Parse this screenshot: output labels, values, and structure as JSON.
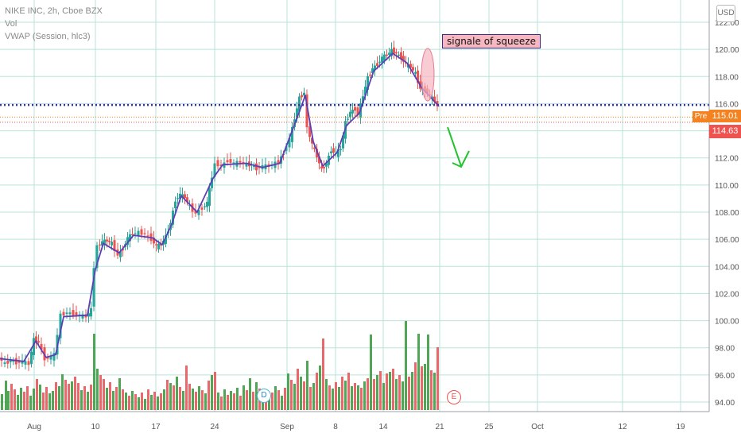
{
  "legend": {
    "title": "NIKE INC, 2h, Cboe BZX",
    "vol": "Vol",
    "vwap": "VWAP (Session, hlc3)"
  },
  "currency_button": "USD",
  "annotation": "signale of squeeze",
  "price_tags": {
    "pre_label": "Pre",
    "pre_price": "115.01",
    "last_price": "114.63"
  },
  "markers": {
    "dividend": "D",
    "earnings": "E"
  },
  "colors": {
    "up": "#26a69a",
    "down": "#ef5350",
    "vol_up": "#3d9b45",
    "vol_down": "#e8585b",
    "vwap": "#5b3fb5",
    "grid": "#b8e3d8",
    "dotted_line": "#3a2fa8",
    "arrow": "#22c32e",
    "annotation_fill": "#f6b7c0",
    "pre": "#f58220"
  },
  "chart_data": {
    "type": "candlestick",
    "title": "NIKE INC, 2h, Cboe BZX",
    "y_ticks": [
      "94.00",
      "96.00",
      "98.00",
      "100.00",
      "102.00",
      "104.00",
      "106.00",
      "108.00",
      "110.00",
      "112.00",
      "114.00",
      "116.00",
      "118.00",
      "120.00",
      "122.00"
    ],
    "ylim": [
      93.5,
      122.5
    ],
    "x_ticks": [
      "Aug",
      "10",
      "17",
      "24",
      "Sep",
      "8",
      "14",
      "21",
      "25",
      "Oct",
      "12",
      "19"
    ],
    "horizontal_level": 115.9,
    "pre_market_price": 115.01,
    "last_price": 114.63,
    "price_path": [
      [
        0,
        97.3
      ],
      [
        8,
        96.8
      ],
      [
        15,
        97.1
      ],
      [
        22,
        96.9
      ],
      [
        30,
        97.0
      ],
      [
        38,
        96.8
      ],
      [
        44,
        98.6
      ],
      [
        50,
        98.4
      ],
      [
        58,
        97.2
      ],
      [
        66,
        97.3
      ],
      [
        70,
        97.5
      ],
      [
        78,
        100.4
      ],
      [
        86,
        100.6
      ],
      [
        94,
        100.5
      ],
      [
        102,
        100.4
      ],
      [
        110,
        100.3
      ],
      [
        116,
        100.8
      ],
      [
        120,
        104.0
      ],
      [
        124,
        105.5
      ],
      [
        130,
        105.8
      ],
      [
        136,
        105.9
      ],
      [
        142,
        105.7
      ],
      [
        150,
        104.8
      ],
      [
        156,
        105.3
      ],
      [
        162,
        106.1
      ],
      [
        168,
        106.4
      ],
      [
        176,
        106.5
      ],
      [
        184,
        106.4
      ],
      [
        192,
        106.0
      ],
      [
        198,
        105.5
      ],
      [
        204,
        105.6
      ],
      [
        210,
        106.2
      ],
      [
        216,
        107.2
      ],
      [
        222,
        108.9
      ],
      [
        228,
        109.3
      ],
      [
        234,
        109.1
      ],
      [
        240,
        108.4
      ],
      [
        248,
        107.9
      ],
      [
        256,
        108.3
      ],
      [
        262,
        108.7
      ],
      [
        268,
        110.6
      ],
      [
        272,
        111.6
      ],
      [
        280,
        111.4
      ],
      [
        288,
        111.8
      ],
      [
        296,
        111.6
      ],
      [
        304,
        111.7
      ],
      [
        312,
        111.5
      ],
      [
        318,
        111.5
      ],
      [
        324,
        111.2
      ],
      [
        332,
        111.4
      ],
      [
        340,
        111.4
      ],
      [
        348,
        111.6
      ],
      [
        352,
        111.7
      ],
      [
        358,
        112.4
      ],
      [
        366,
        113.4
      ],
      [
        372,
        114.9
      ],
      [
        378,
        116.4
      ],
      [
        384,
        116.8
      ],
      [
        388,
        114.2
      ],
      [
        394,
        113.0
      ],
      [
        400,
        112.1
      ],
      [
        406,
        111.1
      ],
      [
        412,
        111.6
      ],
      [
        418,
        112.6
      ],
      [
        424,
        112.3
      ],
      [
        430,
        112.7
      ],
      [
        436,
        114.6
      ],
      [
        442,
        115.4
      ],
      [
        448,
        115.6
      ],
      [
        452,
        115.2
      ],
      [
        458,
        116.6
      ],
      [
        464,
        117.9
      ],
      [
        470,
        118.6
      ],
      [
        476,
        118.9
      ],
      [
        482,
        119.4
      ],
      [
        488,
        119.6
      ],
      [
        494,
        119.9
      ],
      [
        500,
        119.7
      ],
      [
        506,
        119.4
      ],
      [
        512,
        118.9
      ],
      [
        518,
        118.7
      ],
      [
        524,
        118.2
      ],
      [
        530,
        117.1
      ],
      [
        536,
        117.0
      ],
      [
        542,
        116.6
      ],
      [
        548,
        116.2
      ],
      [
        552,
        115.8
      ]
    ],
    "vwap_path": [
      [
        0,
        97.2
      ],
      [
        30,
        97.0
      ],
      [
        45,
        98.5
      ],
      [
        58,
        97.3
      ],
      [
        70,
        97.5
      ],
      [
        80,
        100.3
      ],
      [
        110,
        100.4
      ],
      [
        120,
        103.8
      ],
      [
        130,
        105.7
      ],
      [
        150,
        105.0
      ],
      [
        168,
        106.3
      ],
      [
        192,
        106.1
      ],
      [
        204,
        105.6
      ],
      [
        216,
        107.1
      ],
      [
        228,
        109.2
      ],
      [
        248,
        108.0
      ],
      [
        268,
        110.5
      ],
      [
        280,
        111.5
      ],
      [
        310,
        111.6
      ],
      [
        330,
        111.3
      ],
      [
        352,
        111.6
      ],
      [
        372,
        114.7
      ],
      [
        384,
        116.6
      ],
      [
        394,
        113.2
      ],
      [
        406,
        111.4
      ],
      [
        424,
        112.4
      ],
      [
        436,
        114.4
      ],
      [
        452,
        115.3
      ],
      [
        470,
        118.4
      ],
      [
        494,
        119.7
      ],
      [
        512,
        119.0
      ],
      [
        530,
        117.2
      ],
      [
        552,
        115.8
      ]
    ],
    "volume": [
      {
        "x": 1,
        "h": 20,
        "c": "up"
      },
      {
        "x": 6,
        "h": 37,
        "c": "up"
      },
      {
        "x": 9,
        "h": 24,
        "c": "up"
      },
      {
        "x": 13,
        "h": 33,
        "c": "down"
      },
      {
        "x": 17,
        "h": 26,
        "c": "down"
      },
      {
        "x": 21,
        "h": 19,
        "c": "up"
      },
      {
        "x": 25,
        "h": 28,
        "c": "up"
      },
      {
        "x": 29,
        "h": 23,
        "c": "down"
      },
      {
        "x": 33,
        "h": 30,
        "c": "down"
      },
      {
        "x": 37,
        "h": 18,
        "c": "up"
      },
      {
        "x": 41,
        "h": 27,
        "c": "up"
      },
      {
        "x": 45,
        "h": 39,
        "c": "down"
      },
      {
        "x": 49,
        "h": 32,
        "c": "up"
      },
      {
        "x": 53,
        "h": 22,
        "c": "down"
      },
      {
        "x": 57,
        "h": 29,
        "c": "down"
      },
      {
        "x": 61,
        "h": 21,
        "c": "up"
      },
      {
        "x": 65,
        "h": 24,
        "c": "up"
      },
      {
        "x": 69,
        "h": 35,
        "c": "down"
      },
      {
        "x": 73,
        "h": 30,
        "c": "up"
      },
      {
        "x": 77,
        "h": 45,
        "c": "up"
      },
      {
        "x": 81,
        "h": 38,
        "c": "down"
      },
      {
        "x": 85,
        "h": 33,
        "c": "down"
      },
      {
        "x": 89,
        "h": 36,
        "c": "up"
      },
      {
        "x": 93,
        "h": 42,
        "c": "down"
      },
      {
        "x": 97,
        "h": 34,
        "c": "down"
      },
      {
        "x": 101,
        "h": 25,
        "c": "up"
      },
      {
        "x": 105,
        "h": 30,
        "c": "down"
      },
      {
        "x": 109,
        "h": 23,
        "c": "up"
      },
      {
        "x": 113,
        "h": 32,
        "c": "down"
      },
      {
        "x": 117,
        "h": 96,
        "c": "up"
      },
      {
        "x": 121,
        "h": 52,
        "c": "up"
      },
      {
        "x": 125,
        "h": 44,
        "c": "down"
      },
      {
        "x": 129,
        "h": 39,
        "c": "down"
      },
      {
        "x": 133,
        "h": 28,
        "c": "up"
      },
      {
        "x": 137,
        "h": 35,
        "c": "down"
      },
      {
        "x": 141,
        "h": 24,
        "c": "up"
      },
      {
        "x": 145,
        "h": 29,
        "c": "down"
      },
      {
        "x": 149,
        "h": 40,
        "c": "up"
      },
      {
        "x": 153,
        "h": 26,
        "c": "down"
      },
      {
        "x": 157,
        "h": 22,
        "c": "up"
      },
      {
        "x": 161,
        "h": 18,
        "c": "down"
      },
      {
        "x": 165,
        "h": 24,
        "c": "up"
      },
      {
        "x": 169,
        "h": 20,
        "c": "down"
      },
      {
        "x": 173,
        "h": 16,
        "c": "up"
      },
      {
        "x": 177,
        "h": 22,
        "c": "down"
      },
      {
        "x": 181,
        "h": 14,
        "c": "up"
      },
      {
        "x": 185,
        "h": 26,
        "c": "down"
      },
      {
        "x": 189,
        "h": 19,
        "c": "up"
      },
      {
        "x": 193,
        "h": 23,
        "c": "down"
      },
      {
        "x": 197,
        "h": 17,
        "c": "up"
      },
      {
        "x": 201,
        "h": 21,
        "c": "down"
      },
      {
        "x": 205,
        "h": 26,
        "c": "up"
      },
      {
        "x": 209,
        "h": 38,
        "c": "down"
      },
      {
        "x": 213,
        "h": 34,
        "c": "up"
      },
      {
        "x": 217,
        "h": 31,
        "c": "down"
      },
      {
        "x": 221,
        "h": 42,
        "c": "up"
      },
      {
        "x": 225,
        "h": 29,
        "c": "down"
      },
      {
        "x": 229,
        "h": 24,
        "c": "up"
      },
      {
        "x": 233,
        "h": 56,
        "c": "down"
      },
      {
        "x": 237,
        "h": 33,
        "c": "down"
      },
      {
        "x": 241,
        "h": 27,
        "c": "up"
      },
      {
        "x": 245,
        "h": 23,
        "c": "down"
      },
      {
        "x": 249,
        "h": 30,
        "c": "up"
      },
      {
        "x": 253,
        "h": 25,
        "c": "down"
      },
      {
        "x": 257,
        "h": 21,
        "c": "up"
      },
      {
        "x": 261,
        "h": 37,
        "c": "down"
      },
      {
        "x": 265,
        "h": 44,
        "c": "up"
      },
      {
        "x": 269,
        "h": 48,
        "c": "down"
      },
      {
        "x": 273,
        "h": 22,
        "c": "up"
      },
      {
        "x": 277,
        "h": 17,
        "c": "down"
      },
      {
        "x": 281,
        "h": 26,
        "c": "up"
      },
      {
        "x": 285,
        "h": 19,
        "c": "down"
      },
      {
        "x": 289,
        "h": 24,
        "c": "up"
      },
      {
        "x": 293,
        "h": 21,
        "c": "down"
      },
      {
        "x": 297,
        "h": 28,
        "c": "up"
      },
      {
        "x": 301,
        "h": 18,
        "c": "down"
      },
      {
        "x": 305,
        "h": 31,
        "c": "up"
      },
      {
        "x": 309,
        "h": 25,
        "c": "down"
      },
      {
        "x": 313,
        "h": 40,
        "c": "up"
      },
      {
        "x": 317,
        "h": 23,
        "c": "down"
      },
      {
        "x": 321,
        "h": 35,
        "c": "up"
      },
      {
        "x": 325,
        "h": 27,
        "c": "down"
      },
      {
        "x": 329,
        "h": 20,
        "c": "up"
      },
      {
        "x": 333,
        "h": 24,
        "c": "down"
      },
      {
        "x": 337,
        "h": 19,
        "c": "up"
      },
      {
        "x": 341,
        "h": 22,
        "c": "down"
      },
      {
        "x": 345,
        "h": 30,
        "c": "up"
      },
      {
        "x": 349,
        "h": 25,
        "c": "down"
      },
      {
        "x": 353,
        "h": 18,
        "c": "up"
      },
      {
        "x": 357,
        "h": 28,
        "c": "down"
      },
      {
        "x": 361,
        "h": 46,
        "c": "up"
      },
      {
        "x": 365,
        "h": 38,
        "c": "down"
      },
      {
        "x": 369,
        "h": 33,
        "c": "up"
      },
      {
        "x": 373,
        "h": 52,
        "c": "down"
      },
      {
        "x": 377,
        "h": 42,
        "c": "up"
      },
      {
        "x": 381,
        "h": 36,
        "c": "down"
      },
      {
        "x": 385,
        "h": 62,
        "c": "up"
      },
      {
        "x": 389,
        "h": 29,
        "c": "down"
      },
      {
        "x": 393,
        "h": 34,
        "c": "up"
      },
      {
        "x": 397,
        "h": 47,
        "c": "down"
      },
      {
        "x": 401,
        "h": 56,
        "c": "up"
      },
      {
        "x": 405,
        "h": 90,
        "c": "down"
      },
      {
        "x": 409,
        "h": 39,
        "c": "up"
      },
      {
        "x": 413,
        "h": 31,
        "c": "down"
      },
      {
        "x": 417,
        "h": 27,
        "c": "up"
      },
      {
        "x": 421,
        "h": 35,
        "c": "down"
      },
      {
        "x": 425,
        "h": 29,
        "c": "up"
      },
      {
        "x": 429,
        "h": 42,
        "c": "down"
      },
      {
        "x": 433,
        "h": 37,
        "c": "up"
      },
      {
        "x": 437,
        "h": 47,
        "c": "down"
      },
      {
        "x": 441,
        "h": 30,
        "c": "up"
      },
      {
        "x": 445,
        "h": 34,
        "c": "down"
      },
      {
        "x": 449,
        "h": 31,
        "c": "up"
      },
      {
        "x": 453,
        "h": 28,
        "c": "down"
      },
      {
        "x": 457,
        "h": 36,
        "c": "up"
      },
      {
        "x": 461,
        "h": 40,
        "c": "down"
      },
      {
        "x": 465,
        "h": 95,
        "c": "up"
      },
      {
        "x": 469,
        "h": 39,
        "c": "down"
      },
      {
        "x": 473,
        "h": 44,
        "c": "up"
      },
      {
        "x": 477,
        "h": 49,
        "c": "down"
      },
      {
        "x": 481,
        "h": 34,
        "c": "up"
      },
      {
        "x": 485,
        "h": 46,
        "c": "down"
      },
      {
        "x": 489,
        "h": 48,
        "c": "up"
      },
      {
        "x": 493,
        "h": 52,
        "c": "down"
      },
      {
        "x": 497,
        "h": 39,
        "c": "up"
      },
      {
        "x": 501,
        "h": 44,
        "c": "down"
      },
      {
        "x": 505,
        "h": 36,
        "c": "up"
      },
      {
        "x": 509,
        "h": 112,
        "c": "up"
      },
      {
        "x": 513,
        "h": 42,
        "c": "down"
      },
      {
        "x": 517,
        "h": 48,
        "c": "up"
      },
      {
        "x": 521,
        "h": 60,
        "c": "down"
      },
      {
        "x": 525,
        "h": 96,
        "c": "up"
      },
      {
        "x": 529,
        "h": 55,
        "c": "down"
      },
      {
        "x": 533,
        "h": 58,
        "c": "up"
      },
      {
        "x": 537,
        "h": 95,
        "c": "up"
      },
      {
        "x": 541,
        "h": 50,
        "c": "down"
      },
      {
        "x": 545,
        "h": 47,
        "c": "up"
      },
      {
        "x": 549,
        "h": 79,
        "c": "down"
      }
    ]
  }
}
